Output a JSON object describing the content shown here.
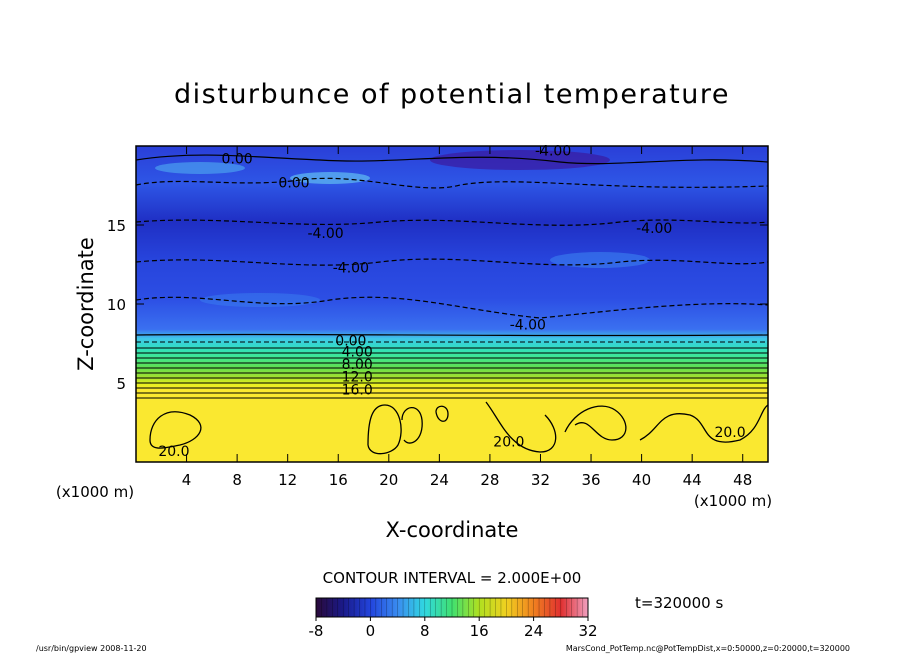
{
  "chart_data": {
    "type": "heatmap",
    "title": "disturbunce of potential temperature",
    "xlabel": "X-coordinate",
    "ylabel": "Z-coordinate",
    "x_unit_left": "(x1000 m)",
    "x_unit_right": "(x1000 m)",
    "xlim": [
      0,
      50
    ],
    "ylim": [
      0,
      20
    ],
    "x_ticks": [
      "4",
      "8",
      "12",
      "16",
      "20",
      "24",
      "28",
      "32",
      "36",
      "40",
      "44",
      "48"
    ],
    "y_ticks": [
      "5",
      "10",
      "15"
    ],
    "contour_interval_text": "CONTOUR INTERVAL = 2.000E+00",
    "time_text": "t=320000 s",
    "colorbar": {
      "min": -8,
      "max": 32,
      "labels": [
        "-8",
        "0",
        "8",
        "16",
        "24",
        "32"
      ]
    },
    "contour_labels": [
      {
        "text": "0.00",
        "x": 8,
        "z": 19.2
      },
      {
        "text": "0.00",
        "x": 12.5,
        "z": 17.7
      },
      {
        "text": "-4.00",
        "x": 33,
        "z": 19.7
      },
      {
        "text": "-4.00",
        "x": 15,
        "z": 14.5
      },
      {
        "text": "-4.00",
        "x": 41,
        "z": 14.8
      },
      {
        "text": "-4.00",
        "x": 17,
        "z": 12.3
      },
      {
        "text": "-4.00",
        "x": 31,
        "z": 8.7
      },
      {
        "text": "0.00",
        "x": 17,
        "z": 7.7
      },
      {
        "text": "4.00",
        "x": 17.5,
        "z": 7.0
      },
      {
        "text": "8.00",
        "x": 17.5,
        "z": 6.2
      },
      {
        "text": "12.0",
        "x": 17.5,
        "z": 5.4
      },
      {
        "text": "16.0",
        "x": 17.5,
        "z": 4.6
      },
      {
        "text": "20.0",
        "x": 3,
        "z": 0.7
      },
      {
        "text": "20.0",
        "x": 29.5,
        "z": 1.3
      },
      {
        "text": "20.0",
        "x": 47,
        "z": 1.9
      }
    ]
  },
  "footer": {
    "left": "/usr/bin/gpview   2008-11-20",
    "right": "MarsCond_PotTemp.nc@PotTempDist,x=0:50000,z=0:20000,t=320000"
  }
}
